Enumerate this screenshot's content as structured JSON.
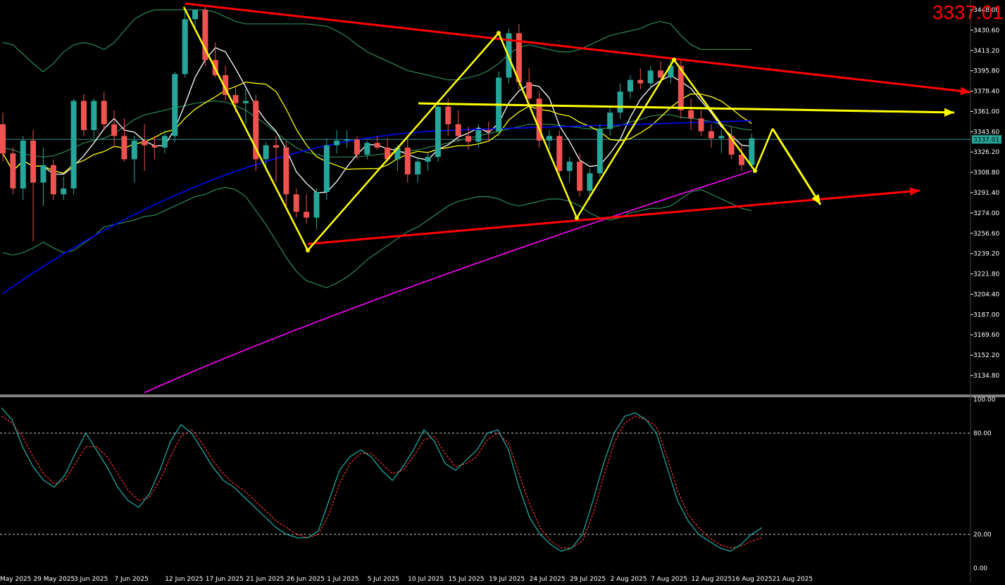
{
  "instrument": {
    "last_price_label": "3337.01",
    "current_price_tag": "3337.01",
    "current_price": 3337.01
  },
  "colors": {
    "background": "#000000",
    "bull_candle": "#26a69a",
    "bear_candle": "#ef5350",
    "bollinger": "#2e8b57",
    "sma_fast": "#ffffff",
    "sma_mid": "#ffff00",
    "sma_50": "#0000ff",
    "sma_200": "#ff00ff",
    "trendline": "#ff0000",
    "pattern": "#ffff00",
    "stoch_k": "#20b2aa",
    "stoch_d": "#ff3030",
    "axis_text": "#ffffff",
    "price_label": "#ff0000"
  },
  "chart_data": [
    {
      "type": "candlestick",
      "title": "",
      "ylim": [
        3130,
        3452
      ],
      "yticks": [
        3448.0,
        3430.6,
        3413.2,
        3395.8,
        3378.4,
        3361.0,
        3343.6,
        3326.2,
        3308.8,
        3291.4,
        3274.0,
        3256.6,
        3239.2,
        3221.8,
        3204.4,
        3187.0,
        3169.6,
        3152.2,
        3134.8
      ],
      "xtick_labels": [
        "May 2025",
        "29 May 2025",
        "3 Jun 2025",
        "7 Jun 2025",
        "12 Jun 2025",
        "17 Jun 2025",
        "21 Jun 2025",
        "26 Jun 2025",
        "1 Jul 2025",
        "5 Jul 2025",
        "10 Jul 2025",
        "15 Jul 2025",
        "19 Jul 2025",
        "24 Jul 2025",
        "29 Jul 2025",
        "2 Aug 2025",
        "7 Aug 2025",
        "12 Aug 2025",
        "16 Aug 2025",
        "21 Aug 2025"
      ],
      "xtick_index": [
        0,
        4,
        8,
        12,
        17,
        21,
        25,
        29,
        33,
        37,
        41,
        45,
        49,
        53,
        57,
        61,
        65,
        69,
        73,
        77
      ],
      "candles": [
        [
          3350,
          3360,
          3318,
          3325
        ],
        [
          3325,
          3330,
          3290,
          3295
        ],
        [
          3295,
          3340,
          3285,
          3336
        ],
        [
          3336,
          3345,
          3250,
          3300
        ],
        [
          3300,
          3330,
          3280,
          3315
        ],
        [
          3315,
          3320,
          3285,
          3290
        ],
        [
          3290,
          3305,
          3285,
          3295
        ],
        [
          3295,
          3372,
          3290,
          3370
        ],
        [
          3370,
          3376,
          3340,
          3345
        ],
        [
          3345,
          3372,
          3338,
          3370
        ],
        [
          3370,
          3378,
          3345,
          3350
        ],
        [
          3350,
          3362,
          3330,
          3340
        ],
        [
          3340,
          3355,
          3318,
          3320
        ],
        [
          3320,
          3340,
          3300,
          3336
        ],
        [
          3336,
          3350,
          3310,
          3332
        ],
        [
          3332,
          3340,
          3320,
          3330
        ],
        [
          3330,
          3345,
          3325,
          3340
        ],
        [
          3340,
          3395,
          3335,
          3393
        ],
        [
          3393,
          3448,
          3390,
          3440
        ],
        [
          3440,
          3448,
          3430,
          3448
        ],
        [
          3448,
          3452,
          3400,
          3405
        ],
        [
          3405,
          3420,
          3390,
          3392
        ],
        [
          3392,
          3400,
          3370,
          3375
        ],
        [
          3375,
          3382,
          3360,
          3368
        ],
        [
          3368,
          3380,
          3350,
          3370
        ],
        [
          3370,
          3375,
          3310,
          3320
        ],
        [
          3320,
          3335,
          3310,
          3332
        ],
        [
          3332,
          3340,
          3300,
          3330
        ],
        [
          3330,
          3335,
          3280,
          3290
        ],
        [
          3290,
          3295,
          3270,
          3275
        ],
        [
          3275,
          3290,
          3265,
          3270
        ],
        [
          3270,
          3295,
          3260,
          3292
        ],
        [
          3292,
          3338,
          3285,
          3332
        ],
        [
          3332,
          3345,
          3325,
          3336
        ],
        [
          3336,
          3345,
          3330,
          3337
        ],
        [
          3337,
          3340,
          3320,
          3324
        ],
        [
          3324,
          3336,
          3320,
          3334
        ],
        [
          3334,
          3340,
          3328,
          3330
        ],
        [
          3330,
          3338,
          3318,
          3320
        ],
        [
          3320,
          3332,
          3310,
          3330
        ],
        [
          3330,
          3340,
          3300,
          3307
        ],
        [
          3307,
          3322,
          3300,
          3318
        ],
        [
          3318,
          3325,
          3310,
          3322
        ],
        [
          3322,
          3370,
          3318,
          3365
        ],
        [
          3365,
          3372,
          3340,
          3350
        ],
        [
          3350,
          3362,
          3335,
          3340
        ],
        [
          3340,
          3348,
          3328,
          3335
        ],
        [
          3335,
          3350,
          3330,
          3345
        ],
        [
          3345,
          3352,
          3335,
          3344
        ],
        [
          3344,
          3395,
          3340,
          3390
        ],
        [
          3390,
          3432,
          3385,
          3428
        ],
        [
          3428,
          3436,
          3380,
          3386
        ],
        [
          3386,
          3398,
          3370,
          3372
        ],
        [
          3372,
          3378,
          3330,
          3336
        ],
        [
          3336,
          3345,
          3328,
          3340
        ],
        [
          3340,
          3345,
          3305,
          3310
        ],
        [
          3310,
          3322,
          3300,
          3318
        ],
        [
          3318,
          3325,
          3288,
          3293
        ],
        [
          3293,
          3312,
          3285,
          3308
        ],
        [
          3308,
          3350,
          3305,
          3346
        ],
        [
          3346,
          3365,
          3340,
          3360
        ],
        [
          3360,
          3385,
          3355,
          3378
        ],
        [
          3378,
          3392,
          3372,
          3388
        ],
        [
          3388,
          3398,
          3380,
          3385
        ],
        [
          3385,
          3400,
          3380,
          3396
        ],
        [
          3396,
          3404,
          3388,
          3390
        ],
        [
          3390,
          3405,
          3385,
          3400
        ],
        [
          3400,
          3406,
          3355,
          3362
        ],
        [
          3362,
          3372,
          3345,
          3355
        ],
        [
          3355,
          3362,
          3340,
          3344
        ],
        [
          3344,
          3350,
          3330,
          3338
        ],
        [
          3338,
          3345,
          3325,
          3340
        ],
        [
          3340,
          3348,
          3320,
          3324
        ],
        [
          3324,
          3332,
          3310,
          3315
        ],
        [
          3315,
          3342,
          3312,
          3338
        ]
      ],
      "indicators": {
        "bollinger_upper": [
          3420,
          3418,
          3410,
          3402,
          3395,
          3402,
          3412,
          3418,
          3420,
          3418,
          3414,
          3420,
          3430,
          3440,
          3445,
          3448,
          3448,
          3448,
          3448,
          3448,
          3448,
          3446,
          3442,
          3438,
          3436,
          3436,
          3436,
          3436,
          3436,
          3436,
          3436,
          3435,
          3434,
          3430,
          3425,
          3418,
          3412,
          3408,
          3404,
          3400,
          3396,
          3394,
          3392,
          3390,
          3388,
          3388,
          3390,
          3392,
          3396,
          3402,
          3410,
          3416,
          3418,
          3416,
          3414,
          3412,
          3412,
          3414,
          3418,
          3422,
          3426,
          3428,
          3430,
          3432,
          3436,
          3438,
          3436,
          3426,
          3418,
          3414,
          3414,
          3414,
          3414,
          3414,
          3414
        ],
        "bollinger_mid": [
          3330,
          3328,
          3325,
          3323,
          3322,
          3323,
          3326,
          3330,
          3334,
          3336,
          3338,
          3342,
          3348,
          3354,
          3358,
          3360,
          3362,
          3364,
          3366,
          3368,
          3369,
          3370,
          3369,
          3366,
          3362,
          3356,
          3350,
          3343,
          3336,
          3330,
          3326,
          3324,
          3322,
          3322,
          3322,
          3322,
          3323,
          3324,
          3325,
          3326,
          3327,
          3328,
          3330,
          3332,
          3334,
          3336,
          3338,
          3340,
          3342,
          3344,
          3346,
          3348,
          3350,
          3350,
          3350,
          3349,
          3348,
          3347,
          3346,
          3346,
          3347,
          3349,
          3352,
          3354,
          3357,
          3358,
          3358,
          3356,
          3355,
          3354,
          3352,
          3350,
          3348,
          3346,
          3345
        ],
        "bollinger_lower": [
          3240,
          3238,
          3240,
          3244,
          3249,
          3244,
          3240,
          3242,
          3248,
          3254,
          3262,
          3264,
          3266,
          3268,
          3271,
          3272,
          3276,
          3280,
          3284,
          3288,
          3290,
          3294,
          3296,
          3294,
          3288,
          3276,
          3264,
          3250,
          3236,
          3224,
          3216,
          3213,
          3210,
          3214,
          3219,
          3226,
          3234,
          3240,
          3246,
          3252,
          3258,
          3262,
          3268,
          3274,
          3280,
          3284,
          3286,
          3288,
          3288,
          3286,
          3282,
          3280,
          3282,
          3284,
          3286,
          3286,
          3284,
          3280,
          3274,
          3270,
          3268,
          3270,
          3274,
          3276,
          3278,
          3278,
          3280,
          3286,
          3292,
          3294,
          3290,
          3286,
          3282,
          3278,
          3276
        ]
      }
    },
    {
      "type": "line",
      "title": "",
      "ylim": [
        0,
        100
      ],
      "yticks": [
        100.0,
        80.0,
        20.0,
        0.0
      ],
      "levels": [
        80,
        20
      ],
      "series": [
        {
          "values": [
            95,
            88,
            72,
            60,
            52,
            48,
            55,
            68,
            80,
            70,
            60,
            48,
            40,
            36,
            44,
            58,
            75,
            85,
            80,
            70,
            60,
            52,
            48,
            42,
            36,
            30,
            24,
            20,
            18,
            18,
            22,
            40,
            58,
            66,
            70,
            66,
            58,
            52,
            60,
            70,
            82,
            75,
            62,
            58,
            64,
            70,
            80,
            82,
            70,
            48,
            30,
            20,
            14,
            10,
            12,
            20,
            40,
            62,
            80,
            90,
            92,
            88,
            80,
            60,
            40,
            28,
            20,
            16,
            12,
            10,
            14,
            20,
            24
          ]
        },
        {
          "values": [
            90,
            86,
            78,
            66,
            56,
            50,
            52,
            62,
            72,
            72,
            66,
            56,
            46,
            40,
            42,
            52,
            66,
            78,
            82,
            74,
            64,
            56,
            50,
            46,
            40,
            34,
            28,
            24,
            20,
            18,
            20,
            32,
            50,
            62,
            68,
            68,
            62,
            56,
            58,
            66,
            76,
            78,
            68,
            60,
            62,
            66,
            76,
            80,
            74,
            56,
            38,
            24,
            16,
            12,
            12,
            16,
            32,
            54,
            74,
            86,
            90,
            88,
            84,
            66,
            46,
            32,
            24,
            18,
            14,
            12,
            13,
            16,
            18
          ]
        }
      ]
    }
  ]
}
